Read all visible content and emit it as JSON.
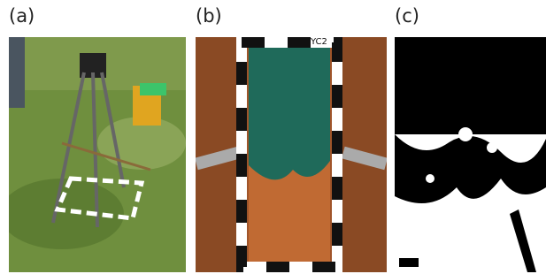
{
  "panels": [
    {
      "label": "(a)"
    },
    {
      "label": "(b)",
      "sign": "YC2"
    },
    {
      "label": "(c)"
    }
  ]
}
